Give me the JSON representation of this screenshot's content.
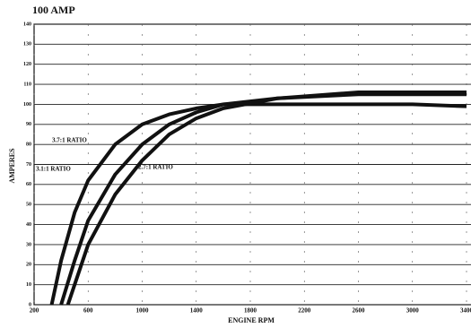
{
  "chart_data": {
    "type": "line",
    "title": "100 AMP",
    "x_label": "ENGINE RPM",
    "y_label": "AMPERES",
    "xlim": [
      200,
      3400
    ],
    "xticks": [
      200,
      600,
      1000,
      1400,
      1800,
      2200,
      2600,
      3000,
      3400
    ],
    "ylim": [
      0,
      140
    ],
    "yticks": [
      0,
      10,
      20,
      30,
      40,
      50,
      60,
      70,
      80,
      90,
      100,
      110,
      120,
      130,
      140
    ],
    "grid": true,
    "series": [
      {
        "name": "3.7:1 RATIO",
        "color": "#111111",
        "x": [
          330,
          400,
          500,
          600,
          800,
          1000,
          1200,
          1400,
          1600,
          2000,
          2600,
          3000,
          3400
        ],
        "values": [
          0,
          22,
          46,
          62,
          80,
          90,
          95,
          98,
          100,
          100,
          100,
          100,
          99
        ]
      },
      {
        "name": "3.1:1 RATIO",
        "color": "#111111",
        "x": [
          400,
          500,
          600,
          800,
          1000,
          1200,
          1400,
          1600,
          2000,
          2600,
          3000,
          3400
        ],
        "values": [
          0,
          22,
          42,
          65,
          80,
          90,
          96,
          100,
          103,
          105,
          105,
          105
        ]
      },
      {
        "name": "2.7:1 RATIO",
        "color": "#111111",
        "x": [
          450,
          600,
          800,
          1000,
          1200,
          1400,
          1600,
          2000,
          2600,
          3000,
          3400
        ],
        "values": [
          0,
          30,
          55,
          72,
          85,
          93,
          98,
          103,
          106,
          106,
          106
        ]
      }
    ]
  }
}
